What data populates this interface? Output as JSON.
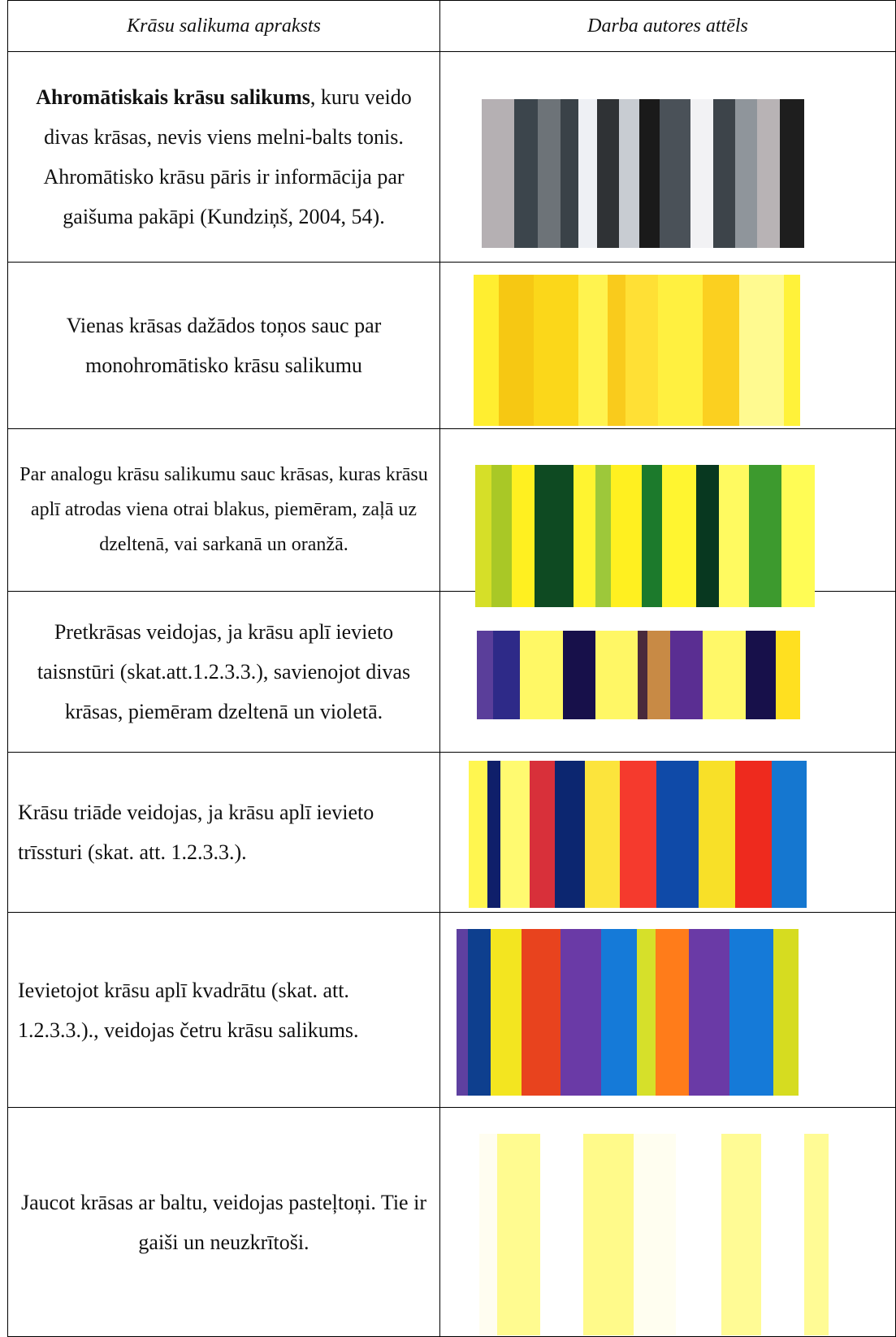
{
  "table": {
    "header": [
      "Krāsu salikuma apraksts",
      "Darba autores attēls"
    ],
    "rows": [
      {
        "bold": "Ahromātiskais krāsu salikums",
        "text": ", kuru veido divas krāsas, nevis viens melni-balts tonis. Ahromātisko krāsu pāris ir informācija par gaišuma pakāpi (Kundziņš, 2004, 54)."
      },
      {
        "text": "Vienas krāsas dažādos toņos sauc par monohromātisko krāsu salikumu"
      },
      {
        "text": "Par analogu krāsu salikumu sauc krāsas, kuras krāsu aplī atrodas viena otrai blakus, piemēram, zaļā uz dzeltenā, vai sarkanā un oranžā."
      },
      {
        "text": "Pretkrāsas veidojas, ja krāsu aplī ievieto taisnstūri (skat.att.1.2.3.3.), savienojot divas krāsas, piemēram dzeltenā un violetā."
      },
      {
        "text": "Krāsu triāde veidojas, ja krāsu aplī ievieto trīssturi (skat. att. 1.2.3.3.)."
      },
      {
        "text": "Ievietojot krāsu aplī kvadrātu (skat. att. 1.2.3.3.)., veidojas četru krāsu salikums."
      },
      {
        "text": "Jaucot krāsas ar baltu, veidojas pasteļtoņi. Tie ir gaiši un neuzkrītoši."
      }
    ]
  }
}
